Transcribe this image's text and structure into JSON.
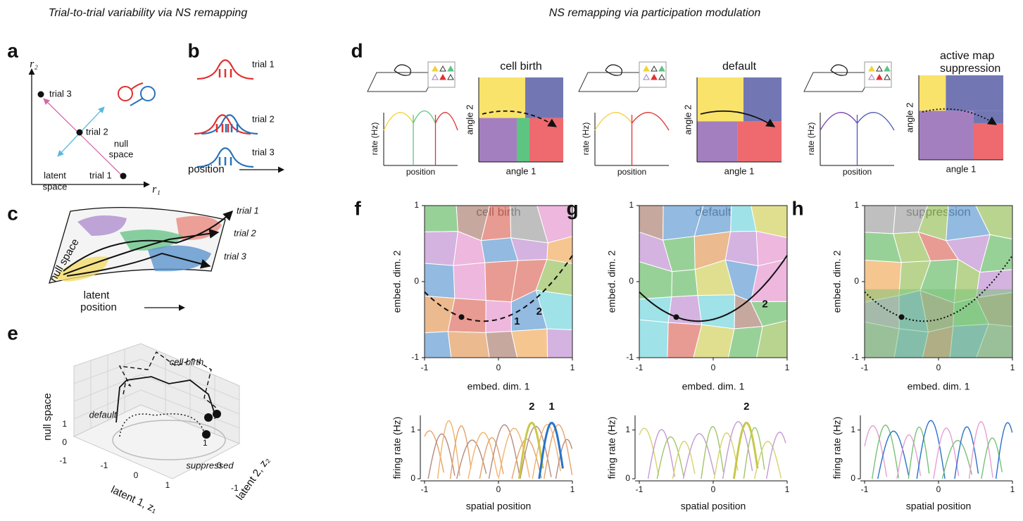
{
  "headers": {
    "left": "Trial-to-trial variability via NS remapping",
    "right": "NS remapping via participation modulation"
  },
  "a": {
    "letter": "a",
    "y_axis": "r₂",
    "x_axis": "r₁",
    "trials": [
      "trial 3",
      "trial 2",
      "trial 1"
    ],
    "latent_space": [
      "latent",
      "space"
    ],
    "null_space": [
      "null",
      "space"
    ]
  },
  "b": {
    "letter": "b",
    "trials": [
      "trial 1",
      "trial 2",
      "trial 3"
    ],
    "x_label": "position"
  },
  "c": {
    "letter": "c",
    "surface_label": "null space",
    "trials": [
      "trial 1",
      "trial 2",
      "trial 3"
    ],
    "x_label": [
      "latent",
      "position"
    ]
  },
  "d": {
    "letter": "d",
    "panels": [
      {
        "title": [
          "cell birth"
        ],
        "rate_label": "rate (Hz)",
        "position_label": "position",
        "y_label": "angle 2",
        "x_label": "angle 1"
      },
      {
        "title": [
          "default"
        ],
        "rate_label": "rate (Hz)",
        "position_label": "position",
        "y_label": "angle 2",
        "x_label": "angle 1"
      },
      {
        "title": [
          "active map",
          "suppression"
        ],
        "rate_label": "rate (Hz)",
        "position_label": "position",
        "y_label": "angle 2",
        "x_label": "angle 1"
      }
    ]
  },
  "e": {
    "letter": "e",
    "z_label": "null space",
    "x_label": "latent 1, z₁",
    "y_label": "latent 2, z₂",
    "z_ticks": [
      1,
      0,
      -1
    ],
    "x_ticks": [
      -1,
      0,
      1
    ],
    "y_ticks": [
      1,
      0,
      -1
    ],
    "curves": [
      "cell birth",
      "default",
      "suppressed"
    ]
  },
  "maps": [
    {
      "letter": "f",
      "title": "cell birth",
      "xlim": [
        -1,
        1
      ],
      "ylim": [
        -1,
        1
      ],
      "xticks": [
        -1,
        0,
        1
      ],
      "yticks": [
        -1,
        0,
        1
      ],
      "x_label": "embed. dim. 1",
      "y_label": "embed. dim. 2",
      "cell_labels": [
        "2",
        "1"
      ],
      "rate_xlim": [
        -1,
        1
      ],
      "rate_ylim": [
        0,
        1.3
      ],
      "rate_xticks": [
        -1,
        0,
        1
      ],
      "rate_yticks": [
        0,
        1
      ],
      "rate_y_label": "firing rate (Hz)",
      "rate_x_label": "spatial position",
      "peak_labels": [
        "2",
        "1"
      ]
    },
    {
      "letter": "g",
      "title": "default",
      "xlim": [
        -1,
        1
      ],
      "ylim": [
        -1,
        1
      ],
      "xticks": [
        -1,
        0,
        1
      ],
      "yticks": [
        -1,
        0,
        1
      ],
      "x_label": "embed. dim. 1",
      "y_label": "embed. dim. 2",
      "cell_labels": [
        "2"
      ],
      "rate_xlim": [
        -1,
        1
      ],
      "rate_ylim": [
        0,
        1.3
      ],
      "rate_xticks": [
        -1,
        0,
        1
      ],
      "rate_yticks": [
        0,
        1
      ],
      "rate_y_label": "firing rate (Hz)",
      "rate_x_label": "spatial position",
      "peak_labels": [
        "2"
      ]
    },
    {
      "letter": "h",
      "title": "suppression",
      "xlim": [
        -1,
        1
      ],
      "ylim": [
        -1,
        1
      ],
      "xticks": [
        -1,
        0,
        1
      ],
      "yticks": [
        -1,
        0,
        1
      ],
      "x_label": "embed. dim. 1",
      "y_label": "embed. dim. 2",
      "rate_xlim": [
        -1,
        1
      ],
      "rate_ylim": [
        0,
        1.3
      ],
      "rate_xticks": [
        -1,
        0,
        1
      ],
      "rate_yticks": [
        0,
        1
      ],
      "rate_y_label": "firing rate (Hz)",
      "rate_x_label": "spatial position"
    }
  ]
}
